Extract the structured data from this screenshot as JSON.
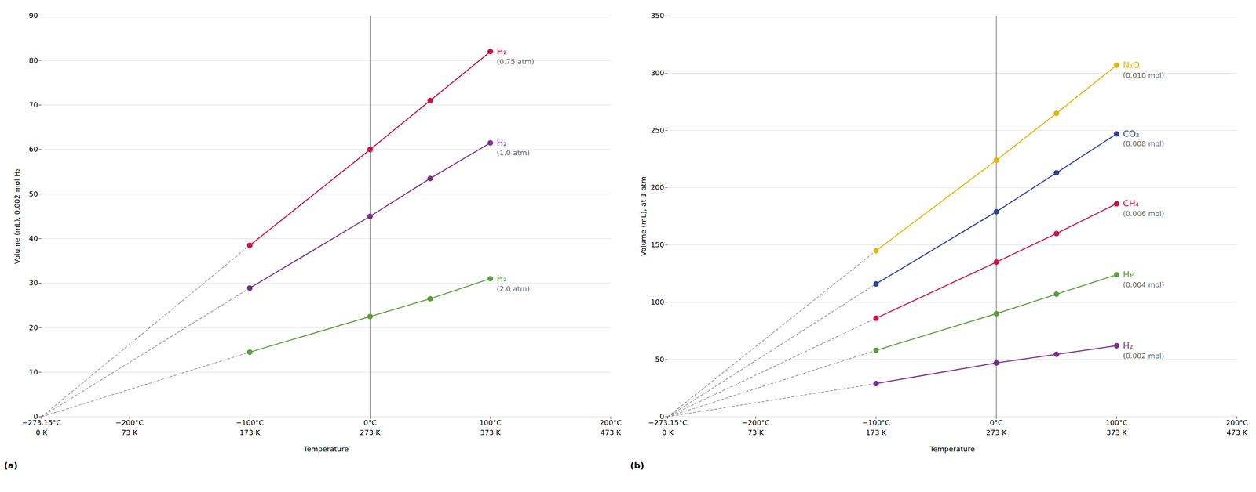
{
  "chart_data": [
    {
      "type": "line",
      "panel_label": "(a)",
      "xlabel": "Temperature",
      "ylabel": "Volume (mL), 0.002 mol H₂",
      "xlim": [
        -273.15,
        200
      ],
      "xticks": [
        {
          "value": -273.15,
          "label": "−273.15°C"
        },
        {
          "value": -200,
          "label": "−200°C"
        },
        {
          "value": -100,
          "label": "−100°C"
        },
        {
          "value": 0,
          "label": "0°C"
        },
        {
          "value": 100,
          "label": "100°C"
        },
        {
          "value": 200,
          "label": "200°C"
        }
      ],
      "x2lim": [
        -273.15,
        200
      ],
      "x2ticks": [
        {
          "value": -273.15,
          "label": "0 K"
        },
        {
          "value": -200,
          "label": "73 K"
        },
        {
          "value": -100,
          "label": "173 K"
        },
        {
          "value": 0,
          "label": "273 K"
        },
        {
          "value": 100,
          "label": "373 K"
        },
        {
          "value": 200,
          "label": "473 K"
        }
      ],
      "ylim": [
        0,
        90
      ],
      "yticks": [
        0,
        10,
        20,
        30,
        40,
        50,
        60,
        70,
        80,
        90
      ],
      "grid": "y",
      "marker": "circle",
      "x": [
        -100,
        0,
        50,
        100
      ],
      "series": [
        {
          "name": "H₂",
          "sublabel": "(0.75 atm)",
          "color": "#cc1144",
          "values": [
            38.5,
            60.0,
            71.0,
            82.0
          ]
        },
        {
          "name": "H₂",
          "sublabel": "(1.0 atm)",
          "color": "#7b2d8b",
          "values": [
            28.9,
            45.0,
            53.5,
            61.5
          ]
        },
        {
          "name": "H₂",
          "sublabel": "(2.0 atm)",
          "color": "#5a9e3a",
          "values": [
            14.5,
            22.5,
            26.5,
            31.0
          ]
        }
      ],
      "extrapolate_to": {
        "x": -273.15,
        "y": 0,
        "line_style": "dashed"
      },
      "vline": 0
    },
    {
      "type": "line",
      "panel_label": "(b)",
      "xlabel": "Temperature",
      "ylabel": "Volume (mL), at 1 atm",
      "xlim": [
        -273.15,
        200
      ],
      "xticks": [
        {
          "value": -273.15,
          "label": "−273.15°C"
        },
        {
          "value": -200,
          "label": "−200°C"
        },
        {
          "value": -100,
          "label": "−100°C"
        },
        {
          "value": 0,
          "label": "0°C"
        },
        {
          "value": 100,
          "label": "100°C"
        },
        {
          "value": 200,
          "label": "200°C"
        }
      ],
      "x2lim": [
        -273.15,
        200
      ],
      "x2ticks": [
        {
          "value": -273.15,
          "label": "0 K"
        },
        {
          "value": -200,
          "label": "73 K"
        },
        {
          "value": -100,
          "label": "173 K"
        },
        {
          "value": 0,
          "label": "273 K"
        },
        {
          "value": 100,
          "label": "373 K"
        },
        {
          "value": 200,
          "label": "473 K"
        }
      ],
      "ylim": [
        0,
        350
      ],
      "yticks": [
        0,
        50,
        100,
        150,
        200,
        250,
        300,
        350
      ],
      "grid": "y",
      "marker": "circle",
      "x": [
        -100,
        0,
        50,
        100
      ],
      "series": [
        {
          "name": "N₂O",
          "sublabel": "(0.010 mol)",
          "color": "#e8b400",
          "values": [
            145.0,
            224.0,
            265.0,
            307.0
          ]
        },
        {
          "name": "CO₂",
          "sublabel": "(0.008 mol)",
          "color": "#2b4099",
          "values": [
            116.0,
            179.0,
            213.0,
            247.0
          ]
        },
        {
          "name": "CH₄",
          "sublabel": "(0.006 mol)",
          "color": "#cc1144",
          "values": [
            86.0,
            135.0,
            160.0,
            186.0
          ]
        },
        {
          "name": "He",
          "sublabel": "(0.004 mol)",
          "color": "#5a9e3a",
          "values": [
            58.0,
            90.0,
            107.0,
            124.0
          ]
        },
        {
          "name": "H₂",
          "sublabel": "(0.002 mol)",
          "color": "#7b2d8b",
          "values": [
            29.0,
            47.0,
            54.5,
            62.0
          ]
        }
      ],
      "extrapolate_to": {
        "x": -273.15,
        "y": 0,
        "line_style": "dashed"
      },
      "vline": 0
    }
  ]
}
